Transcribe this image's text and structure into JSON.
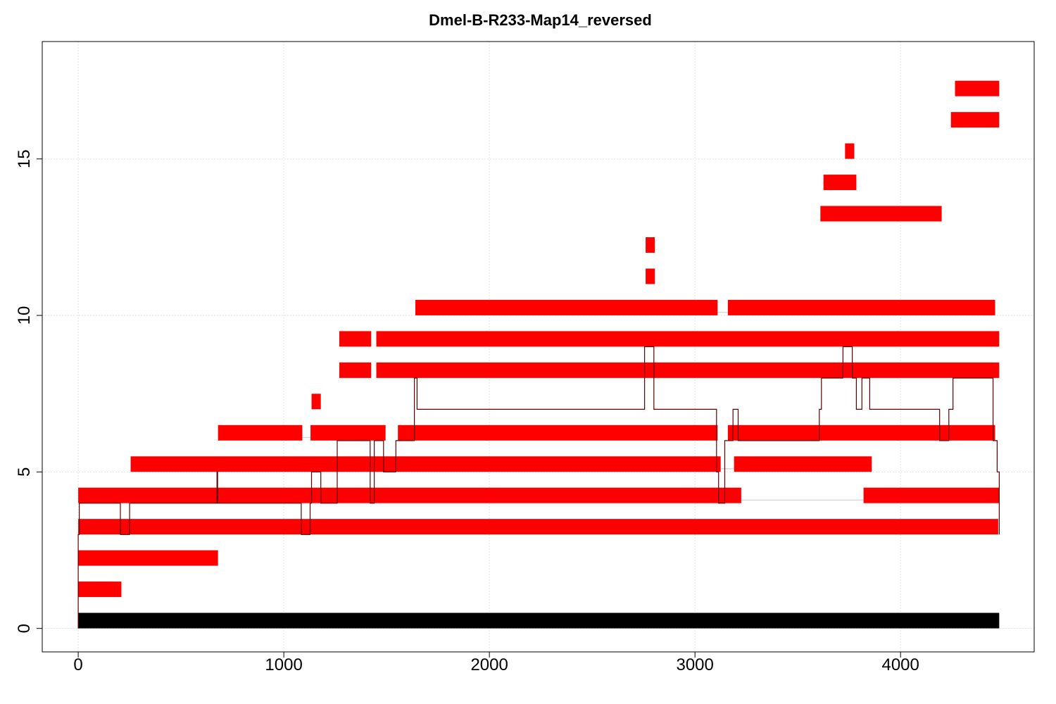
{
  "chart_data": {
    "type": "segment-map",
    "title": "Dmel-B-R233-Map14_reversed",
    "xlabel": "",
    "ylabel": "",
    "xlim": [
      -175,
      4650
    ],
    "ylim": [
      -0.75,
      18.75
    ],
    "x_ticks": [
      0,
      1000,
      2000,
      3000,
      4000
    ],
    "y_ticks": [
      0,
      5,
      10,
      15
    ],
    "grid": true,
    "reference": {
      "row": 0.25,
      "start": 0,
      "end": 4480,
      "color": "#000000"
    },
    "segment_color": "#ff0000",
    "segments": [
      {
        "row": 1.25,
        "start": 0,
        "end": 210
      },
      {
        "row": 2.25,
        "start": 0,
        "end": 680
      },
      {
        "row": 3.25,
        "start": 0,
        "end": 4475
      },
      {
        "row": 4.25,
        "start": 0,
        "end": 3225
      },
      {
        "row": 4.25,
        "start": 3820,
        "end": 4480
      },
      {
        "row": 5.25,
        "start": 255,
        "end": 3125
      },
      {
        "row": 5.25,
        "start": 3190,
        "end": 3860
      },
      {
        "row": 6.25,
        "start": 680,
        "end": 1090
      },
      {
        "row": 6.25,
        "start": 1130,
        "end": 1495
      },
      {
        "row": 6.25,
        "start": 1555,
        "end": 3110
      },
      {
        "row": 6.25,
        "start": 3160,
        "end": 4460
      },
      {
        "row": 7.25,
        "start": 1135,
        "end": 1180
      },
      {
        "row": 8.25,
        "start": 1270,
        "end": 1425
      },
      {
        "row": 8.25,
        "start": 1450,
        "end": 4480
      },
      {
        "row": 9.25,
        "start": 1270,
        "end": 1425
      },
      {
        "row": 9.25,
        "start": 1450,
        "end": 4480
      },
      {
        "row": 10.25,
        "start": 1640,
        "end": 3110
      },
      {
        "row": 10.25,
        "start": 3160,
        "end": 4460
      },
      {
        "row": 11.25,
        "start": 2760,
        "end": 2805
      },
      {
        "row": 12.25,
        "start": 2760,
        "end": 2805
      },
      {
        "row": 13.25,
        "start": 3610,
        "end": 4200
      },
      {
        "row": 14.25,
        "start": 3625,
        "end": 3785
      },
      {
        "row": 15.25,
        "start": 3730,
        "end": 3775
      },
      {
        "row": 16.25,
        "start": 4245,
        "end": 4480
      },
      {
        "row": 17.25,
        "start": 4265,
        "end": 4480
      }
    ],
    "gap_lines": [
      {
        "row": 4.1,
        "start": 3225,
        "end": 3820
      },
      {
        "row": 5.1,
        "start": 3125,
        "end": 3190
      },
      {
        "row": 6.1,
        "start": 1090,
        "end": 1130
      },
      {
        "row": 10.1,
        "start": 3110,
        "end": 3160
      }
    ],
    "path_color": "#5a0000",
    "path": [
      [
        0,
        0
      ],
      [
        0,
        1
      ],
      [
        0,
        2
      ],
      [
        0,
        3
      ],
      [
        5,
        3
      ],
      [
        5,
        4
      ],
      [
        205,
        4
      ],
      [
        205,
        3
      ],
      [
        250,
        3
      ],
      [
        250,
        4
      ],
      [
        675,
        4
      ],
      [
        675,
        5
      ],
      [
        678,
        5
      ],
      [
        678,
        4
      ],
      [
        1085,
        4
      ],
      [
        1085,
        3
      ],
      [
        1128,
        3
      ],
      [
        1128,
        4
      ],
      [
        1135,
        4
      ],
      [
        1135,
        5
      ],
      [
        1180,
        5
      ],
      [
        1180,
        4
      ],
      [
        1260,
        4
      ],
      [
        1260,
        6
      ],
      [
        1420,
        6
      ],
      [
        1420,
        4
      ],
      [
        1440,
        4
      ],
      [
        1440,
        6
      ],
      [
        1485,
        6
      ],
      [
        1485,
        5
      ],
      [
        1545,
        5
      ],
      [
        1545,
        6
      ],
      [
        1635,
        6
      ],
      [
        1635,
        8
      ],
      [
        1648,
        8
      ],
      [
        1648,
        7
      ],
      [
        2755,
        7
      ],
      [
        2755,
        9
      ],
      [
        2800,
        9
      ],
      [
        2800,
        7
      ],
      [
        3105,
        7
      ],
      [
        3105,
        5
      ],
      [
        3115,
        5
      ],
      [
        3115,
        4
      ],
      [
        3145,
        4
      ],
      [
        3145,
        6
      ],
      [
        3185,
        6
      ],
      [
        3185,
        7
      ],
      [
        3210,
        7
      ],
      [
        3210,
        6
      ],
      [
        3605,
        6
      ],
      [
        3605,
        7
      ],
      [
        3615,
        7
      ],
      [
        3615,
        8
      ],
      [
        3720,
        8
      ],
      [
        3720,
        9
      ],
      [
        3765,
        9
      ],
      [
        3765,
        8
      ],
      [
        3785,
        8
      ],
      [
        3785,
        7
      ],
      [
        3812,
        7
      ],
      [
        3812,
        8
      ],
      [
        3850,
        8
      ],
      [
        3850,
        7
      ],
      [
        4190,
        7
      ],
      [
        4190,
        6
      ],
      [
        4235,
        6
      ],
      [
        4235,
        7
      ],
      [
        4255,
        7
      ],
      [
        4255,
        8
      ],
      [
        4450,
        8
      ],
      [
        4450,
        6
      ],
      [
        4470,
        6
      ],
      [
        4470,
        5
      ],
      [
        4480,
        5
      ],
      [
        4480,
        3
      ]
    ]
  }
}
